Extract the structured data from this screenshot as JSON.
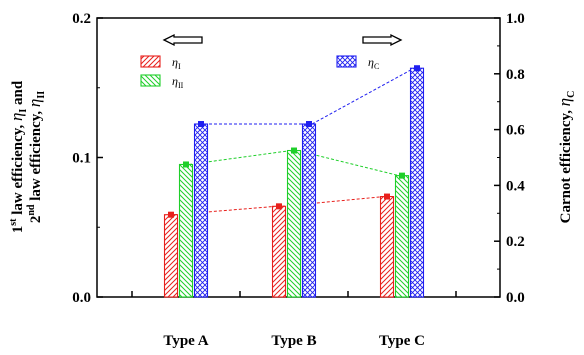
{
  "chart_data": {
    "type": "bar",
    "categories": [
      "Type A",
      "Type B",
      "Type C"
    ],
    "series": [
      {
        "name": "η_I",
        "symbol": "η",
        "sub": "I",
        "axis": "left",
        "values": [
          0.059,
          0.065,
          0.072
        ],
        "color": "#e8201c",
        "pattern": "forward-diagonal"
      },
      {
        "name": "η_II",
        "symbol": "η",
        "sub": "II",
        "axis": "left",
        "values": [
          0.095,
          0.105,
          0.087
        ],
        "color": "#1fcf2a",
        "pattern": "backward-diagonal"
      },
      {
        "name": "η_C",
        "symbol": "η",
        "sub": "C",
        "axis": "right",
        "values": [
          0.62,
          0.62,
          0.82
        ],
        "color": "#1f1ff0",
        "pattern": "crosshatch"
      }
    ],
    "left_axis": {
      "label_lines": [
        [
          "1",
          "st",
          " law efficiency, ",
          "η",
          "I",
          " and"
        ],
        [
          "2",
          "nd",
          " law efficiency, ",
          "η",
          "II",
          ""
        ]
      ],
      "ylim": [
        0.0,
        0.2
      ],
      "ticks": [
        "0.0",
        "0.1",
        "0.2"
      ]
    },
    "right_axis": {
      "label_parts": [
        "Carnot efficiency, ",
        "η",
        "C"
      ],
      "ylim": [
        0.0,
        1.0
      ],
      "ticks": [
        "0.0",
        "0.2",
        "0.4",
        "0.6",
        "0.8",
        "1.0"
      ]
    },
    "arrows": [
      {
        "direction": "left",
        "near": "left-axis series"
      },
      {
        "direction": "right",
        "near": "right-axis series"
      }
    ],
    "legend_position": "top",
    "grid": false
  }
}
